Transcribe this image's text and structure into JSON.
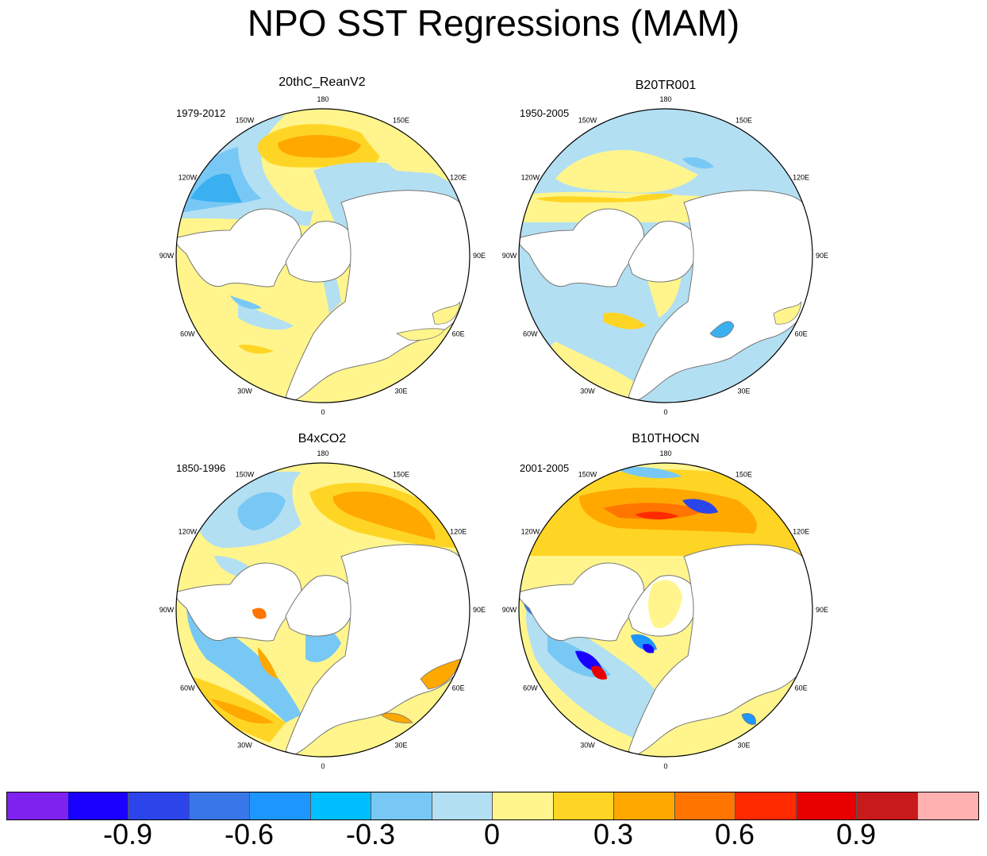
{
  "title": "NPO SST Regressions (MAM)",
  "panels": [
    {
      "name": "20thC_ReanV2",
      "period": "1979-2012"
    },
    {
      "name": "B20TR001",
      "period": "1950-2005"
    },
    {
      "name": "B4xCO2",
      "period": "1850-1996"
    },
    {
      "name": "B10THOCN",
      "period": "2001-2005"
    }
  ],
  "lon_labels": [
    "180",
    "150E",
    "120E",
    "90E",
    "60E",
    "30E",
    "0",
    "30W",
    "60W",
    "90W",
    "120W",
    "150W"
  ],
  "colorbar": {
    "colors": [
      "#7f22f0",
      "#1a00ff",
      "#2b45ea",
      "#3977e8",
      "#1e96ff",
      "#00bfff",
      "#78c8f5",
      "#b3dff3",
      "#fff58c",
      "#ffd525",
      "#ffa800",
      "#ff7500",
      "#ff2a00",
      "#e80000",
      "#c81a1a",
      "#ffb1b1"
    ],
    "labels": [
      "-0.9",
      "-0.6",
      "-0.3",
      "0",
      "0.3",
      "0.6",
      "0.9"
    ]
  }
}
